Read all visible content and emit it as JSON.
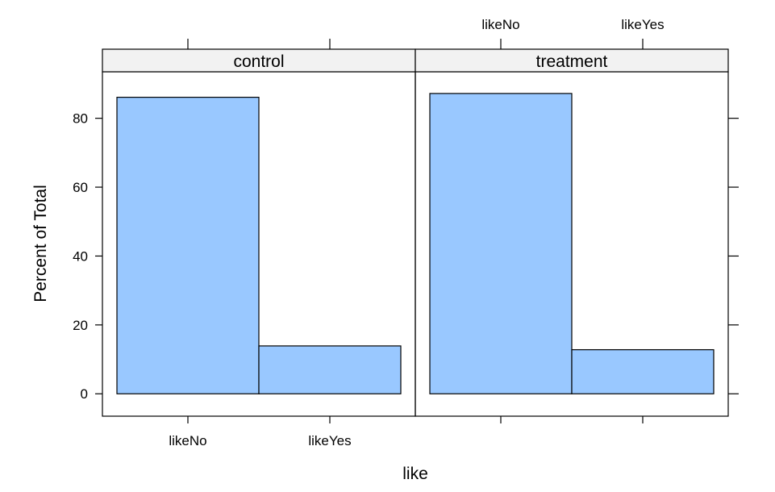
{
  "chart_data": {
    "type": "bar",
    "xlabel": "like",
    "ylabel": "Percent of Total",
    "ylim": [
      -6.5,
      93.5
    ],
    "yticks": [
      0,
      20,
      40,
      60,
      80
    ],
    "categories": [
      "likeNo",
      "likeYes"
    ],
    "bar_color": "#99c8ff",
    "strip_color": "#f2f2f2",
    "panels": [
      {
        "name": "control",
        "values": [
          86.1,
          13.9
        ]
      },
      {
        "name": "treatment",
        "values": [
          87.2,
          12.8
        ]
      }
    ]
  }
}
